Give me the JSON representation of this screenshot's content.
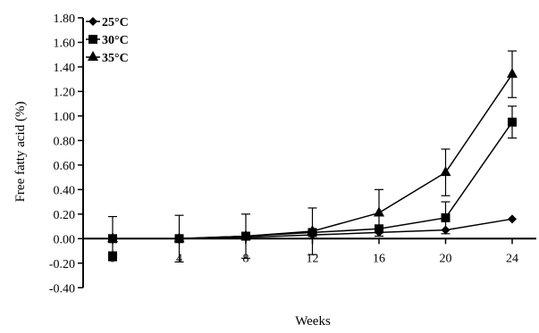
{
  "chart_data": {
    "type": "line",
    "title": "",
    "xlabel": "Weeks",
    "ylabel": "Free fatty acid (%)",
    "x": [
      0,
      4,
      8,
      12,
      16,
      20,
      24
    ],
    "xticks": [
      "0",
      "4",
      "8",
      "12",
      "16",
      "20",
      "24"
    ],
    "ylim": [
      -0.4,
      1.8
    ],
    "yticks": [
      "-0.40",
      "-0.20",
      "0.00",
      "0.20",
      "0.40",
      "0.60",
      "0.80",
      "1.00",
      "1.20",
      "1.40",
      "1.60",
      "1.80"
    ],
    "ytick_values": [
      -0.4,
      -0.2,
      0.0,
      0.2,
      0.4,
      0.6,
      0.8,
      1.0,
      1.2,
      1.4,
      1.6,
      1.8
    ],
    "legend_position": "top-left",
    "grid": false,
    "series": [
      {
        "name": "25°C",
        "marker": "diamond",
        "values": [
          0.0,
          0.0,
          0.01,
          0.03,
          0.05,
          0.07,
          0.16
        ],
        "errors": [
          0.0,
          0.0,
          0.0,
          0.0,
          0.0,
          0.0,
          0.0
        ]
      },
      {
        "name": "30°C",
        "marker": "square",
        "values": [
          0.0,
          0.0,
          0.02,
          0.05,
          0.08,
          0.17,
          0.95
        ],
        "errors": [
          0.0,
          0.0,
          0.0,
          0.0,
          0.0,
          0.13,
          0.13
        ]
      },
      {
        "name": "35°C",
        "marker": "triangle",
        "values": [
          0.0,
          0.0,
          0.02,
          0.06,
          0.21,
          0.54,
          1.34
        ],
        "errors": [
          0.18,
          0.19,
          0.18,
          0.19,
          0.19,
          0.19,
          0.19
        ]
      }
    ]
  }
}
